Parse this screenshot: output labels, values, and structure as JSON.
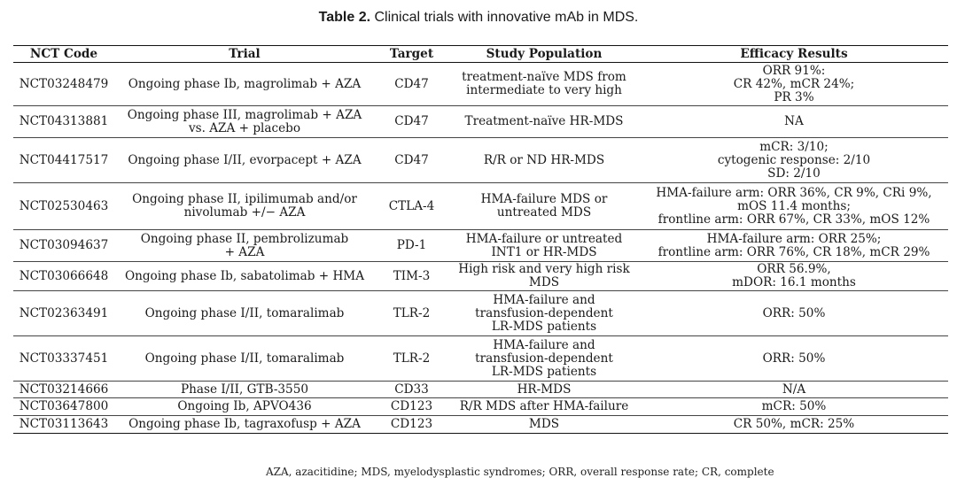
{
  "caption": {
    "lead": "Table 2.",
    "text": "Clinical trials with innovative mAb in MDS."
  },
  "table": {
    "headers": [
      "NCT Code",
      "Trial",
      "Target",
      "Study Population",
      "Efficacy Results"
    ],
    "rows": [
      {
        "nct": "NCT03248479",
        "trial": [
          "Ongoing phase Ib, magrolimab + AZA"
        ],
        "target": "CD47",
        "population": [
          "treatment-naïve MDS from",
          "intermediate to very high"
        ],
        "efficacy": [
          "ORR 91%:",
          "CR 42%, mCR 24%;",
          "PR 3%"
        ]
      },
      {
        "nct": "NCT04313881",
        "trial": [
          "Ongoing phase III, magrolimab + AZA",
          "vs. AZA + placebo"
        ],
        "target": "CD47",
        "population": [
          "Treatment-naïve HR-MDS"
        ],
        "efficacy": [
          "NA"
        ]
      },
      {
        "nct": "NCT04417517",
        "trial": [
          "Ongoing phase I/II, evorpacept + AZA"
        ],
        "target": "CD47",
        "population": [
          "R/R or ND HR-MDS"
        ],
        "efficacy": [
          "mCR: 3/10;",
          "cytogenic response: 2/10",
          "SD: 2/10"
        ]
      },
      {
        "nct": "NCT02530463",
        "trial": [
          "Ongoing phase II, ipilimumab and/or",
          "nivolumab +/− AZA"
        ],
        "target": "CTLA-4",
        "population": [
          "HMA-failure MDS or",
          "untreated MDS"
        ],
        "efficacy": [
          "HMA-failure arm: ORR 36%, CR 9%, CRi 9%,",
          "mOS 11.4 months;",
          "frontline arm: ORR 67%, CR 33%, mOS 12%"
        ]
      },
      {
        "nct": "NCT03094637",
        "trial": [
          "Ongoing phase II, pembrolizumab",
          "+ AZA"
        ],
        "target": "PD-1",
        "population": [
          "HMA-failure or untreated",
          "INT1 or HR-MDS"
        ],
        "efficacy": [
          "HMA-failure arm: ORR 25%;",
          "frontline arm: ORR 76%, CR 18%, mCR 29%"
        ]
      },
      {
        "nct": "NCT03066648",
        "trial": [
          "Ongoing phase Ib, sabatolimab + HMA"
        ],
        "target": "TIM-3",
        "population": [
          "High risk and very high risk",
          "MDS"
        ],
        "efficacy": [
          "ORR 56.9%,",
          "mDOR: 16.1 months"
        ]
      },
      {
        "nct": "NCT02363491",
        "trial": [
          "Ongoing phase I/II, tomaralimab"
        ],
        "target": "TLR-2",
        "population": [
          "HMA-failure and",
          "transfusion-dependent",
          "LR-MDS patients"
        ],
        "efficacy": [
          "ORR: 50%"
        ]
      },
      {
        "nct": "NCT03337451",
        "trial": [
          "Ongoing phase I/II, tomaralimab"
        ],
        "target": "TLR-2",
        "population": [
          "HMA-failure and",
          "transfusion-dependent",
          "LR-MDS patients"
        ],
        "efficacy": [
          "ORR: 50%"
        ]
      },
      {
        "nct": "NCT03214666",
        "trial": [
          "Phase I/II, GTB-3550"
        ],
        "target": "CD33",
        "population": [
          "HR-MDS"
        ],
        "efficacy": [
          "N/A"
        ]
      },
      {
        "nct": "NCT03647800",
        "trial": [
          "Ongoing Ib, APVO436"
        ],
        "target": "CD123",
        "population": [
          "R/R MDS after HMA-failure"
        ],
        "efficacy": [
          "mCR: 50%"
        ]
      },
      {
        "nct": "NCT03113643",
        "trial": [
          "Ongoing phase Ib, tagraxofusp + AZA"
        ],
        "target": "CD123",
        "population": [
          "MDS"
        ],
        "efficacy": [
          "CR 50%, mCR: 25%"
        ]
      }
    ]
  },
  "footnote": "AZA, azacitidine; MDS, myelodysplastic syndromes; ORR, overall response rate; CR, complete"
}
